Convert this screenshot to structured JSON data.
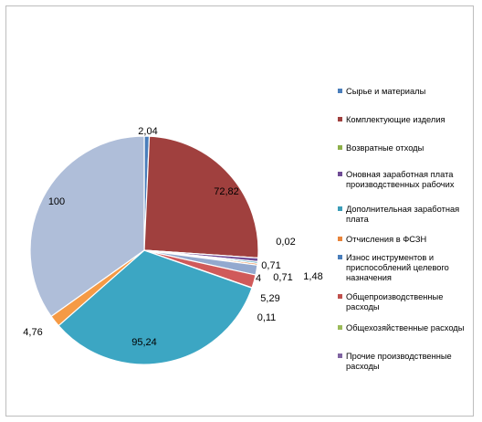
{
  "chart_data": {
    "type": "pie",
    "title": "",
    "legend_position": "right",
    "slices": [
      {
        "label": "Сырье и материалы",
        "value": 2.04,
        "value_label": "2,04",
        "color": "#4a7ebb"
      },
      {
        "label": "Комплектующие изделия",
        "value": 72.82,
        "value_label": "72,82",
        "color": "#a0403e"
      },
      {
        "label": "Возвратные отходы",
        "value": 0.02,
        "value_label": "0,02",
        "color": "#8db04a"
      },
      {
        "label": "Оновная заработная плата производственных рабочих",
        "value": 1.48,
        "value_label": "1,48",
        "color": "#6f4b95"
      },
      {
        "label": "Дополнительная заработная плата",
        "value": 0.71,
        "value_label": "0,71",
        "color": "#3c9db8"
      },
      {
        "label": "Отчисления в ФСЗН",
        "value": 0.71,
        "value_label": "0,71",
        "color": "#e8843a"
      },
      {
        "label": "Износ инструментов и приспособлений целевого назначения",
        "value": 4,
        "value_label": "4",
        "color": "#93a9cf"
      },
      {
        "label": "Общепроизводственные расходы",
        "value": 5.29,
        "value_label": "5,29",
        "color": "#d05a5a"
      },
      {
        "label": "Общехозяйственные расходы",
        "value": 0.11,
        "value_label": "0,11",
        "color": "#a9c659"
      },
      {
        "label": "Прочие производственные расходы",
        "value": 95.24,
        "value_label": "95,24",
        "color": "#3ca6c3"
      },
      {
        "label": "",
        "value": 4.76,
        "value_label": "4,76",
        "color": "#f59a45"
      },
      {
        "label": "",
        "value": 100,
        "value_label": "100",
        "color": "#afbed9"
      }
    ]
  },
  "legend": {
    "items": [
      {
        "text": "Сырье и материалы",
        "color": "#4a7ebb"
      },
      {
        "text": "Комплектующие изделия",
        "color": "#a0403e"
      },
      {
        "text": "Возвратные отходы",
        "color": "#8db04a"
      },
      {
        "text": "Оновная заработная плата производственных рабочих",
        "color": "#6f4b95"
      },
      {
        "text": "Дополнительная заработная плата",
        "color": "#3c9db8"
      },
      {
        "text": "Отчисления в ФСЗН",
        "color": "#e8843a"
      },
      {
        "text": "Износ инструментов и приспособлений целевого назначения",
        "color": "#4a7ebb"
      },
      {
        "text": "Общепроизводственные расходы",
        "color": "#c0504d"
      },
      {
        "text": "Общехозяйственные расходы",
        "color": "#9bbb59"
      },
      {
        "text": "Прочие производственные расходы",
        "color": "#8064a2"
      }
    ]
  }
}
